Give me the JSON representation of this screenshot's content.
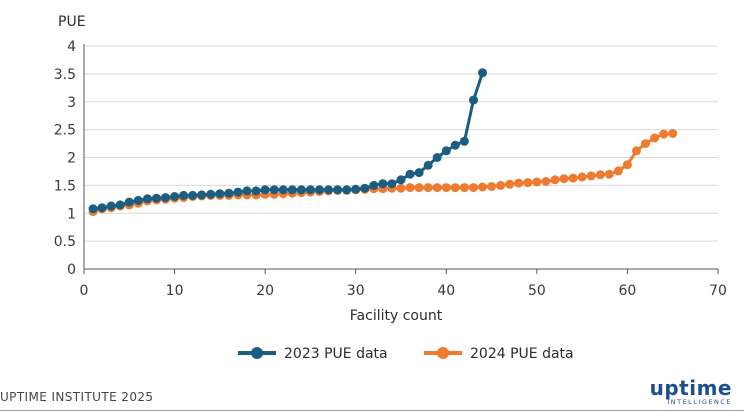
{
  "chart_data": {
    "type": "line",
    "title": "",
    "xlabel": "Facility count",
    "ylabel": "PUE",
    "xlim": [
      0,
      70
    ],
    "ylim": [
      0,
      4
    ],
    "x_ticks": [
      "0",
      "10",
      "20",
      "30",
      "40",
      "50",
      "60",
      "70"
    ],
    "y_ticks": [
      "0",
      "0.5",
      "1",
      "1.5",
      "2",
      "2.5",
      "3",
      "3.5",
      "4"
    ],
    "grid": "horizontal",
    "legend_position": "bottom",
    "series": [
      {
        "name": "2023 PUE data",
        "color": "#1b5e82",
        "x": [
          1,
          2,
          3,
          4,
          5,
          6,
          7,
          8,
          9,
          10,
          11,
          12,
          13,
          14,
          15,
          16,
          17,
          18,
          19,
          20,
          21,
          22,
          23,
          24,
          25,
          26,
          27,
          28,
          29,
          30,
          31,
          32,
          33,
          34,
          35,
          36,
          37,
          38,
          39,
          40,
          41,
          42,
          43,
          44
        ],
        "y": [
          1.08,
          1.1,
          1.13,
          1.15,
          1.2,
          1.23,
          1.26,
          1.27,
          1.28,
          1.3,
          1.32,
          1.32,
          1.33,
          1.34,
          1.35,
          1.36,
          1.38,
          1.4,
          1.4,
          1.42,
          1.42,
          1.42,
          1.42,
          1.42,
          1.42,
          1.42,
          1.42,
          1.42,
          1.42,
          1.43,
          1.45,
          1.5,
          1.53,
          1.53,
          1.6,
          1.7,
          1.73,
          1.86,
          2.0,
          2.12,
          2.22,
          2.29,
          3.03,
          3.52
        ]
      },
      {
        "name": "2024 PUE data",
        "color": "#ee7b30",
        "x": [
          1,
          2,
          3,
          4,
          5,
          6,
          7,
          8,
          9,
          10,
          11,
          12,
          13,
          14,
          15,
          16,
          17,
          18,
          19,
          20,
          21,
          22,
          23,
          24,
          25,
          26,
          27,
          28,
          29,
          30,
          31,
          32,
          33,
          34,
          35,
          36,
          37,
          38,
          39,
          40,
          41,
          42,
          43,
          44,
          45,
          46,
          47,
          48,
          49,
          50,
          51,
          52,
          53,
          54,
          55,
          56,
          57,
          58,
          59,
          60,
          61,
          62,
          63,
          64,
          65
        ],
        "y": [
          1.03,
          1.08,
          1.1,
          1.13,
          1.15,
          1.18,
          1.22,
          1.24,
          1.25,
          1.27,
          1.28,
          1.3,
          1.31,
          1.32,
          1.32,
          1.32,
          1.33,
          1.33,
          1.33,
          1.34,
          1.34,
          1.35,
          1.36,
          1.37,
          1.38,
          1.39,
          1.4,
          1.41,
          1.41,
          1.42,
          1.43,
          1.44,
          1.44,
          1.45,
          1.45,
          1.46,
          1.46,
          1.46,
          1.46,
          1.46,
          1.46,
          1.46,
          1.46,
          1.47,
          1.48,
          1.5,
          1.52,
          1.54,
          1.55,
          1.56,
          1.57,
          1.6,
          1.62,
          1.63,
          1.65,
          1.67,
          1.69,
          1.7,
          1.76,
          1.87,
          2.12,
          2.25,
          2.35,
          2.42,
          2.43
        ]
      }
    ]
  },
  "footer": {
    "source": "UPTIME INSTITUTE 2025",
    "logo_main": "uptime",
    "logo_sub": "INTELLIGENCE"
  }
}
